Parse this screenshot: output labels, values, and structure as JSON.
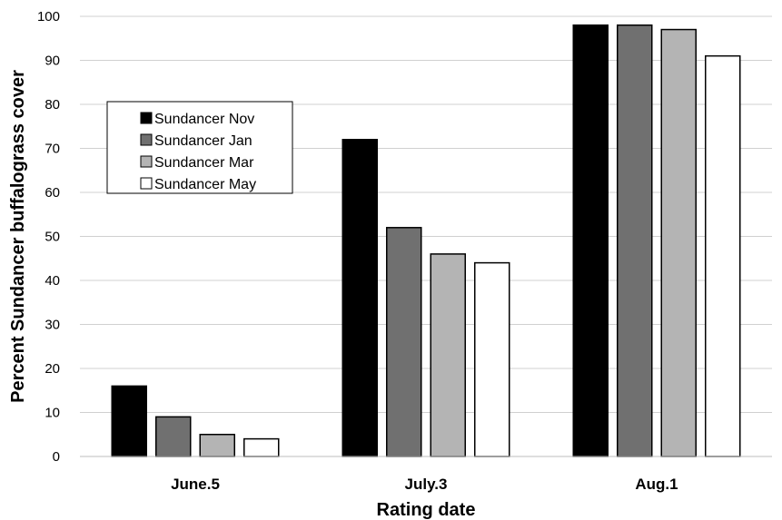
{
  "chart_data": {
    "type": "bar",
    "categories": [
      "June.5",
      "July.3",
      "Aug.1"
    ],
    "series": [
      {
        "name": "Sundancer Nov",
        "color": "#000000",
        "values": [
          16,
          72,
          98
        ]
      },
      {
        "name": "Sundancer Jan",
        "color": "#707070",
        "values": [
          9,
          52,
          98
        ]
      },
      {
        "name": "Sundancer Mar",
        "color": "#b4b4b4",
        "values": [
          5,
          46,
          97
        ]
      },
      {
        "name": "Sundancer May",
        "color": "#ffffff",
        "values": [
          4,
          44,
          91
        ]
      }
    ],
    "xlabel": "Rating date",
    "ylabel": "Percent Sundancer buffalograss cover",
    "ylim": [
      0,
      100
    ],
    "yticks": [
      0,
      10,
      20,
      30,
      40,
      50,
      60,
      70,
      80,
      90,
      100
    ],
    "grid": true,
    "legend_position": "upper-left"
  }
}
